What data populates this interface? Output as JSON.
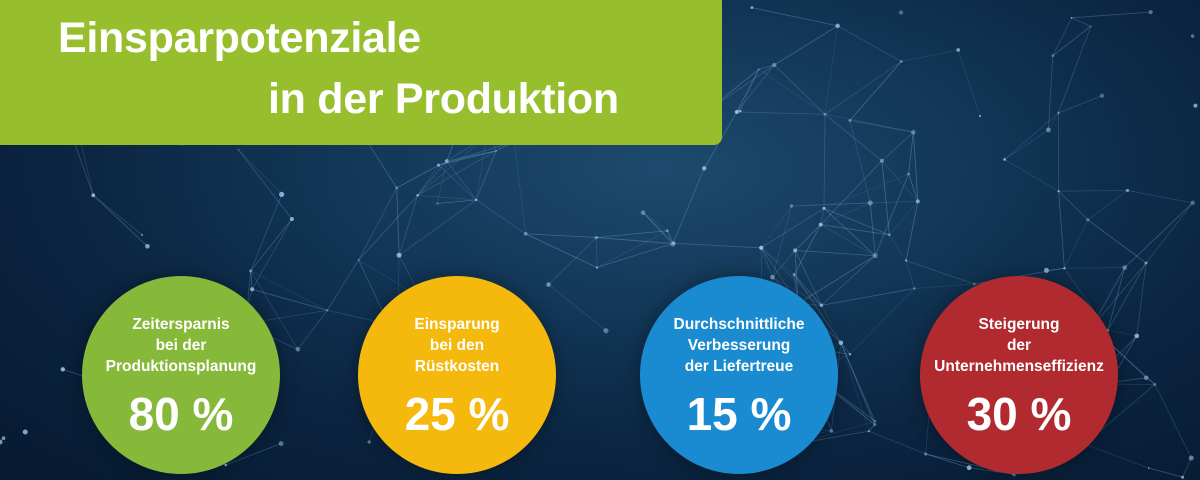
{
  "title": {
    "line1": "Einsparpotenziale",
    "line2": "in der Produktion"
  },
  "colors": {
    "title_bg": "#97be2d",
    "green": "#86b83a",
    "yellow": "#f5b80c",
    "blue": "#1a8bd0",
    "red": "#b02a30"
  },
  "stats": [
    {
      "lines": [
        "Zeitersparnis",
        "bei der",
        "Produktionsplanung"
      ],
      "value": "80 %"
    },
    {
      "lines": [
        "Einsparung",
        "bei den",
        "Rüstkosten"
      ],
      "value": "25 %"
    },
    {
      "lines": [
        "Durchschnittliche",
        "Verbesserung",
        "der Liefertreue"
      ],
      "value": "15 %"
    },
    {
      "lines": [
        "Steigerung",
        "der",
        "Unternehmenseffizienz"
      ],
      "value": "30 %"
    }
  ]
}
